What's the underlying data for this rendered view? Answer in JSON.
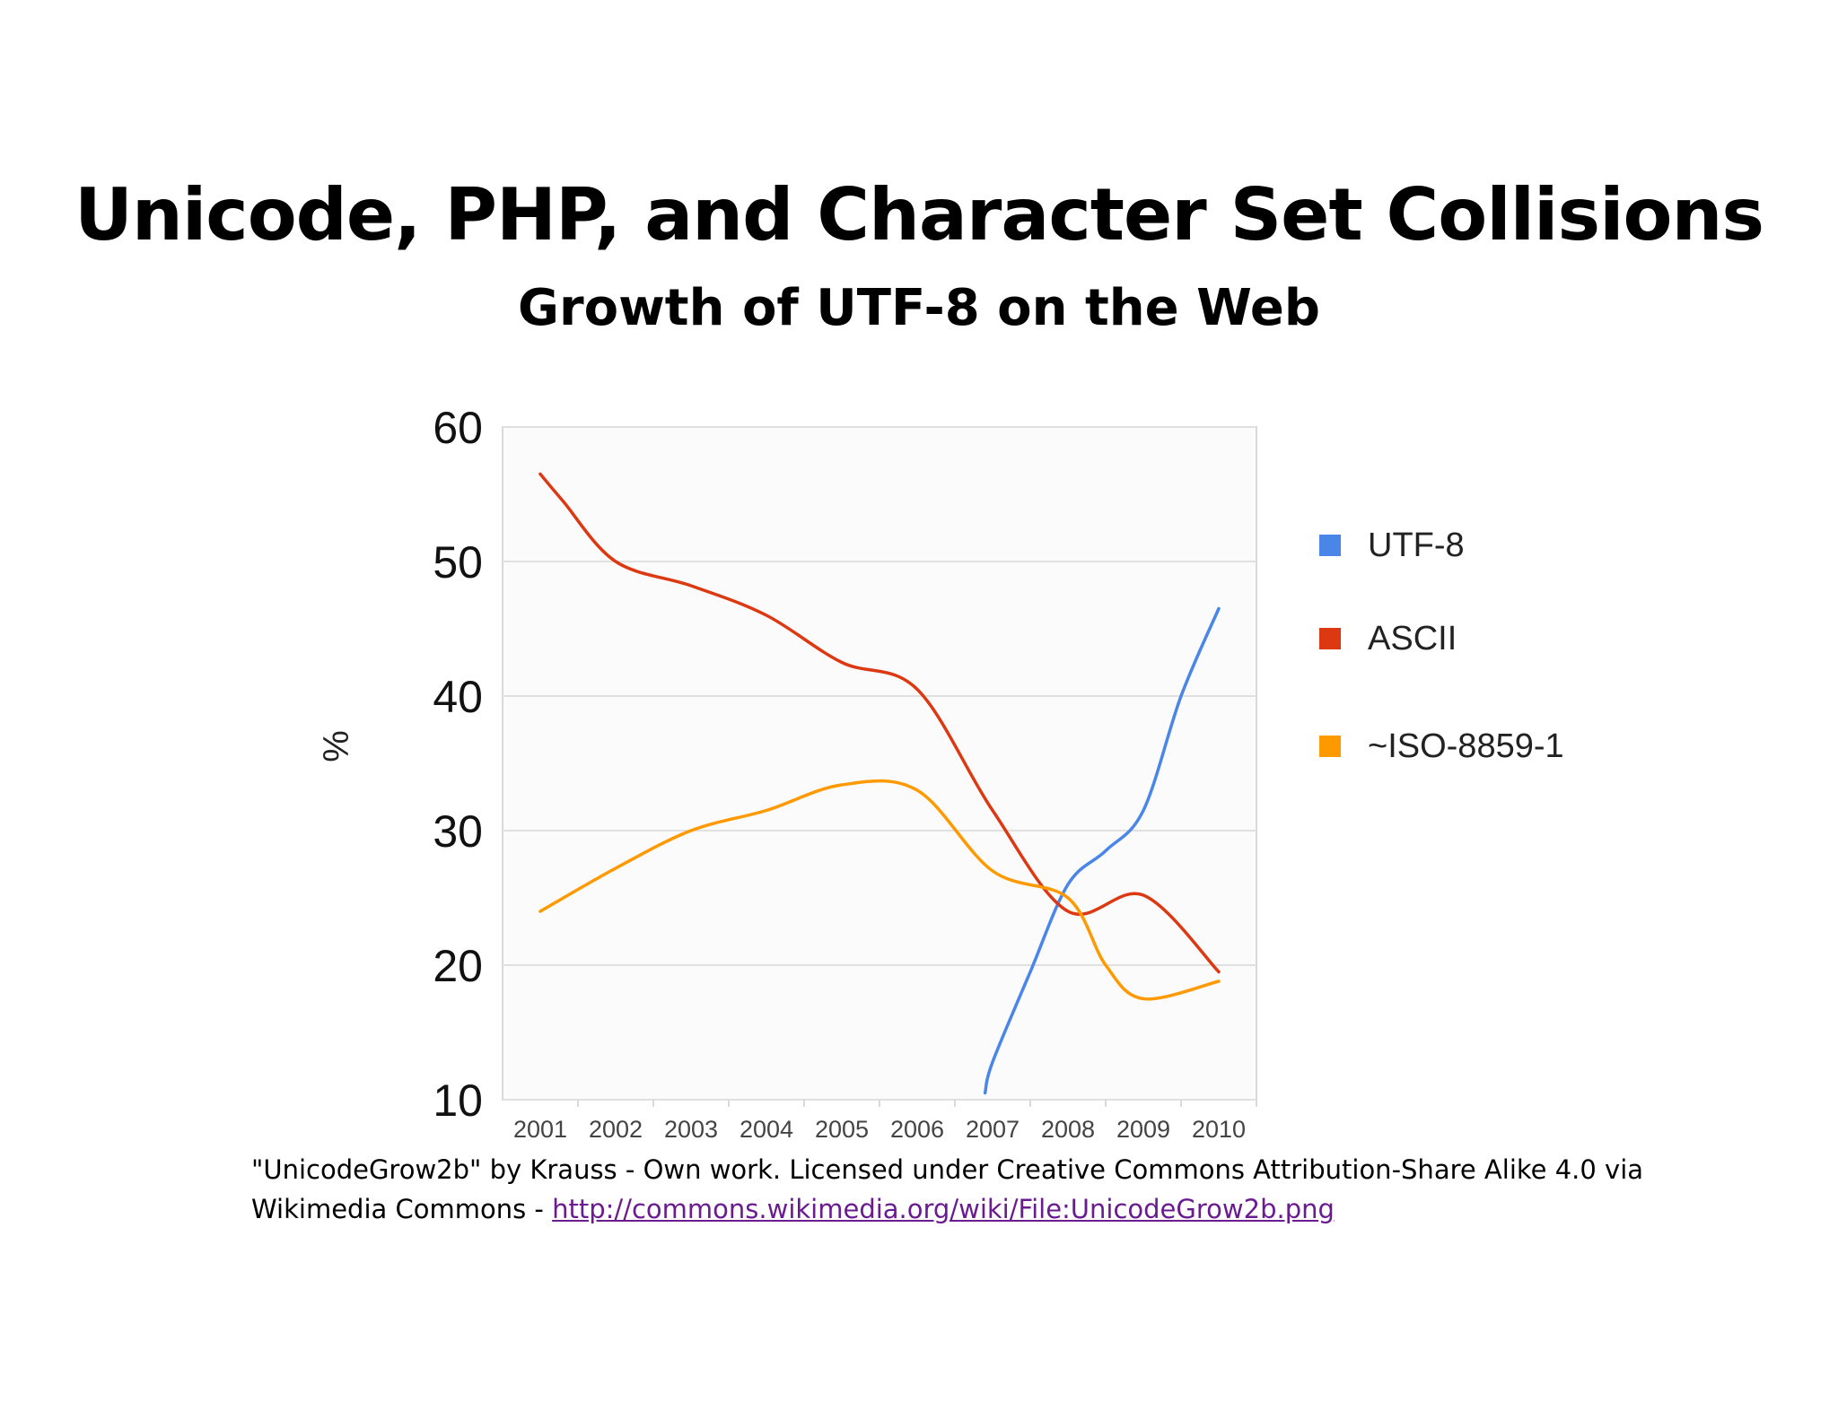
{
  "slide": {
    "title": "Unicode, PHP, and Character Set Collisions",
    "subtitle": "Growth of UTF-8 on the Web"
  },
  "caption": {
    "text_line1": "\"UnicodeGrow2b\" by Krauss - Own work. Licensed under Creative Commons Attribution-Share Alike 4.0 via",
    "text_line2_prefix": "Wikimedia Commons - ",
    "link": "http://commons.wikimedia.org/wiki/File:UnicodeGrow2b.png"
  },
  "chart_data": {
    "type": "line",
    "title": "",
    "xlabel": "",
    "ylabel": "%",
    "categories": [
      "2001",
      "2002",
      "2003",
      "2004",
      "2005",
      "2006",
      "2007",
      "2008",
      "2009",
      "2010"
    ],
    "ylim": [
      10,
      60
    ],
    "yticks": [
      10,
      20,
      30,
      40,
      50,
      60
    ],
    "grid": true,
    "legend_position": "right",
    "series": [
      {
        "name": "UTF-8",
        "color": "#4a86e8",
        "points": [
          [
            2006.9,
            10.5
          ],
          [
            2007,
            12.8
          ],
          [
            2007.5,
            19.5
          ],
          [
            2008,
            26.0
          ],
          [
            2008.5,
            28.5
          ],
          [
            2009,
            31.5
          ],
          [
            2009.5,
            40.0
          ],
          [
            2010,
            46.5
          ]
        ]
      },
      {
        "name": "ASCII",
        "color": "#dc3912",
        "points": [
          [
            2001,
            56.5
          ],
          [
            2001.3,
            54.5
          ],
          [
            2002,
            50.0
          ],
          [
            2003,
            48.2
          ],
          [
            2004,
            46.0
          ],
          [
            2005,
            42.5
          ],
          [
            2006,
            40.5
          ],
          [
            2007,
            31.5
          ],
          [
            2008,
            24.0
          ],
          [
            2009,
            25.2
          ],
          [
            2010,
            19.5
          ]
        ]
      },
      {
        "name": "~ISO-8859-1",
        "color": "#ff9900",
        "points": [
          [
            2001,
            24.0
          ],
          [
            2002,
            27.2
          ],
          [
            2003,
            30.0
          ],
          [
            2004,
            31.5
          ],
          [
            2005,
            33.4
          ],
          [
            2006,
            33.0
          ],
          [
            2007,
            27.0
          ],
          [
            2008,
            25.0
          ],
          [
            2008.5,
            20.0
          ],
          [
            2009,
            17.5
          ],
          [
            2010,
            18.8
          ]
        ]
      }
    ]
  }
}
